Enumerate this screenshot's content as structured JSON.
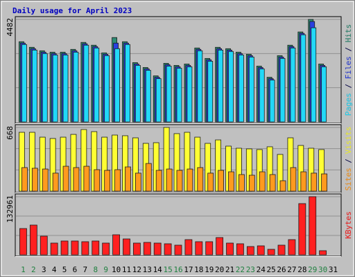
{
  "title": "Daily usage for April 2023",
  "chart_data": [
    {
      "type": "bar",
      "ylim": [
        0,
        4482
      ],
      "yticks": [
        4482
      ],
      "legend_position": "right",
      "legend_separator": " / ",
      "series": [
        {
          "name": "Hits",
          "color": "#2e8b74",
          "values": [
            3506,
            3262,
            3110,
            3049,
            3049,
            3171,
            3476,
            3354,
            3018,
            3689,
            3506,
            2592,
            2378,
            2012,
            2561,
            2470,
            2531,
            3232,
            2775,
            3262,
            3201,
            3049,
            2958,
            2439,
            1951,
            2897,
            3354,
            3933,
            4482,
            2531,
            null
          ]
        },
        {
          "name": "Files",
          "color": "#2a3fe0",
          "values": [
            3445,
            3201,
            3049,
            2988,
            2988,
            3110,
            3415,
            3293,
            2958,
            3445,
            3445,
            2531,
            2317,
            1951,
            2500,
            2409,
            2470,
            3171,
            2714,
            3201,
            3140,
            2988,
            2897,
            2378,
            1890,
            2836,
            3293,
            3872,
            4390,
            2470,
            null
          ]
        },
        {
          "name": "Pages",
          "color": "#22d8f8",
          "values": [
            3384,
            3140,
            2988,
            2927,
            2927,
            3049,
            3354,
            3232,
            2897,
            3201,
            3384,
            2470,
            2256,
            1890,
            2439,
            2348,
            2409,
            3110,
            2653,
            3140,
            3079,
            2927,
            2836,
            2317,
            1829,
            2775,
            3232,
            3811,
            4116,
            2409,
            null
          ]
        }
      ]
    },
    {
      "type": "bar",
      "ylim": [
        0,
        668
      ],
      "yticks": [
        668
      ],
      "legend_position": "right",
      "legend_separator": " / ",
      "series": [
        {
          "name": "Visits",
          "color": "#ffff33",
          "values": [
            617,
            617,
            566,
            552,
            566,
            595,
            646,
            624,
            566,
            588,
            581,
            559,
            501,
            508,
            668,
            603,
            617,
            566,
            501,
            537,
            472,
            450,
            443,
            436,
            465,
            385,
            559,
            479,
            450,
            436,
            null
          ]
        },
        {
          "name": "Sites",
          "color": "#ff9a1e",
          "values": [
            247,
            240,
            232,
            189,
            261,
            247,
            261,
            225,
            218,
            225,
            254,
            189,
            290,
            218,
            232,
            218,
            232,
            247,
            189,
            218,
            203,
            174,
            167,
            203,
            174,
            109,
            247,
            203,
            189,
            181,
            null
          ]
        }
      ]
    },
    {
      "type": "bar",
      "ylim": [
        0,
        132961
      ],
      "yticks": [
        132961
      ],
      "legend_position": "right",
      "categories": [
        "1",
        "2",
        "3",
        "4",
        "5",
        "6",
        "7",
        "8",
        "9",
        "10",
        "11",
        "12",
        "13",
        "14",
        "15",
        "16",
        "17",
        "18",
        "19",
        "20",
        "21",
        "22",
        "23",
        "24",
        "25",
        "26",
        "27",
        "28",
        "29",
        "30",
        "31"
      ],
      "category_colors": [
        "#208040",
        "#208040",
        "#000000",
        "#000000",
        "#000000",
        "#000000",
        "#000000",
        "#208040",
        "#208040",
        "#000000",
        "#000000",
        "#000000",
        "#000000",
        "#000000",
        "#208040",
        "#208040",
        "#000000",
        "#000000",
        "#000000",
        "#000000",
        "#000000",
        "#208040",
        "#208040",
        "#000000",
        "#000000",
        "#000000",
        "#000000",
        "#000000",
        "#208040",
        "#208040",
        "#000000"
      ],
      "series": [
        {
          "name": "KBytes",
          "color": "#ff2020",
          "values": [
            60149,
            68063,
            42737,
            26908,
            31657,
            31657,
            30074,
            31657,
            26908,
            45903,
            36406,
            26908,
            28491,
            26908,
            25326,
            22160,
            34823,
            30074,
            30074,
            39571,
            26908,
            25326,
            18994,
            20577,
            12663,
            22160,
            34823,
            117131,
            132961,
            9497,
            null
          ]
        }
      ]
    }
  ]
}
